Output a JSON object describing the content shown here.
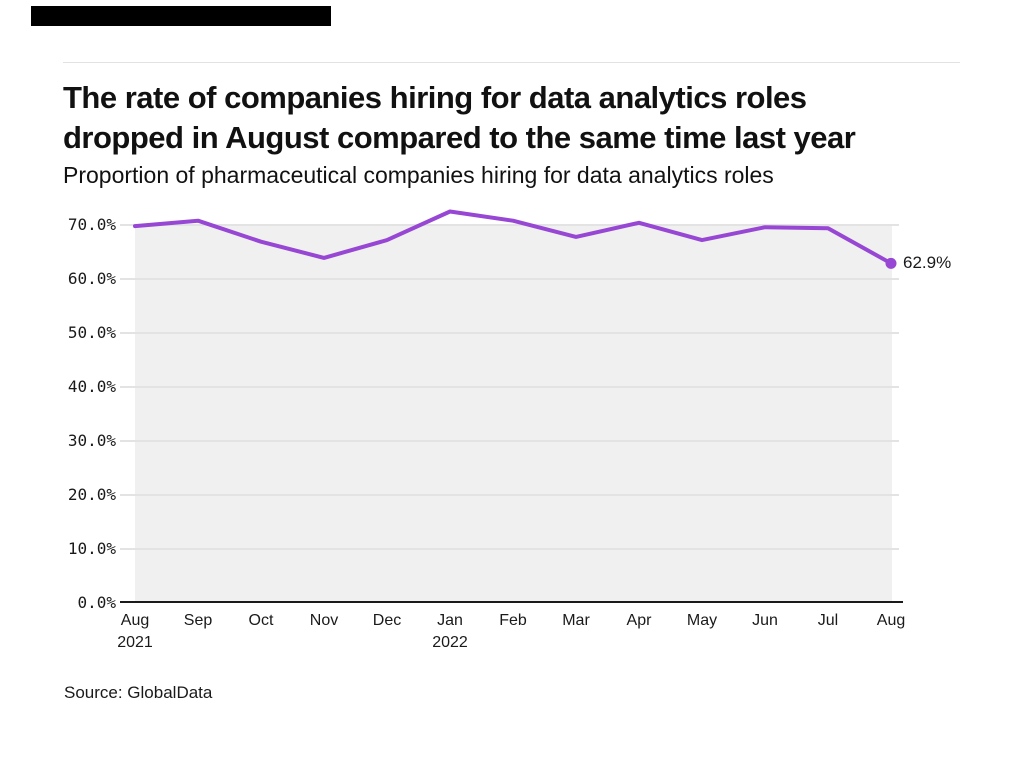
{
  "header": {
    "logo_color": "#000000",
    "divider_color": "#e2e2e2"
  },
  "title": {
    "line1": "The rate of companies hiring for data analytics roles",
    "line2": "dropped in August compared to the same time last year"
  },
  "subtitle": "Proportion of pharmaceutical companies hiring for data analytics roles",
  "source": "Source: GlobalData",
  "colors": {
    "line": "#9747d4",
    "plot_bg": "#f0f0f0",
    "grid": "#e3e3e3",
    "axis": "#1a1a1a"
  },
  "chart_data": {
    "type": "line",
    "title": "The rate of companies hiring for data analytics roles dropped in August compared to the same time last year",
    "subtitle": "Proportion of pharmaceutical companies hiring for data analytics roles",
    "x_labels": [
      {
        "month": "Aug",
        "year": "2021"
      },
      {
        "month": "Sep"
      },
      {
        "month": "Oct"
      },
      {
        "month": "Nov"
      },
      {
        "month": "Dec"
      },
      {
        "month": "Jan",
        "year": "2022"
      },
      {
        "month": "Feb"
      },
      {
        "month": "Mar"
      },
      {
        "month": "Apr"
      },
      {
        "month": "May"
      },
      {
        "month": "Jun"
      },
      {
        "month": "Jul"
      },
      {
        "month": "Aug"
      }
    ],
    "values": [
      69.8,
      70.8,
      66.9,
      63.9,
      67.2,
      72.5,
      70.8,
      67.8,
      70.4,
      67.2,
      69.6,
      69.4,
      62.9
    ],
    "unit": "%",
    "y_ticks": [
      {
        "value": 70,
        "label": "70.0%"
      },
      {
        "value": 60,
        "label": "60.0%"
      },
      {
        "value": 50,
        "label": "50.0%"
      },
      {
        "value": 40,
        "label": "40.0%"
      },
      {
        "value": 30,
        "label": "30.0%"
      },
      {
        "value": 20,
        "label": "20.0%"
      },
      {
        "value": 10,
        "label": "10.0%"
      },
      {
        "value": 0,
        "label": "0.0%"
      }
    ],
    "y_axis_range": [
      0,
      70
    ],
    "grid": true,
    "legend": "none",
    "end_label": "62.9%",
    "line_color": "#9747d4"
  }
}
